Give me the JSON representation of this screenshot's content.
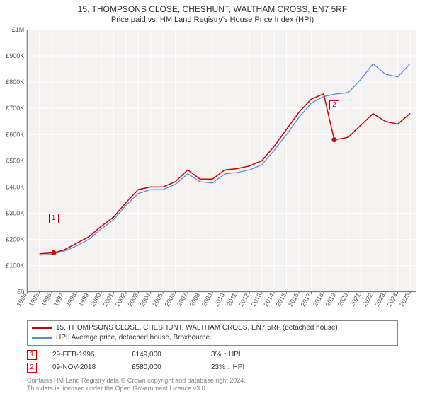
{
  "title": "15, THOMPSONS CLOSE, CHESHUNT, WALTHAM CROSS, EN7 5RF",
  "subtitle": "Price paid vs. HM Land Registry's House Price Index (HPI)",
  "chart": {
    "type": "line",
    "background_color": "#ffffff",
    "plot_background_color": "#f5f2f2",
    "grid_color": "#ffffff",
    "axis_color": "#666666",
    "tick_font_size": 9,
    "x": {
      "min": 1994,
      "max": 2025.5,
      "ticks": [
        1994,
        1995,
        1996,
        1997,
        1998,
        1999,
        2000,
        2001,
        2002,
        2003,
        2004,
        2005,
        2006,
        2007,
        2008,
        2009,
        2010,
        2011,
        2012,
        2013,
        2014,
        2015,
        2016,
        2017,
        2018,
        2019,
        2020,
        2021,
        2022,
        2023,
        2024,
        2025
      ],
      "tick_labels": [
        "1994",
        "1995",
        "1996",
        "1997",
        "1998",
        "1999",
        "2000",
        "2001",
        "2002",
        "2003",
        "2004",
        "2005",
        "2006",
        "2007",
        "2008",
        "2009",
        "2010",
        "2011",
        "2012",
        "2013",
        "2014",
        "2015",
        "2016",
        "2017",
        "2018",
        "2019",
        "2020",
        "2021",
        "2022",
        "2023",
        "2024",
        "2025"
      ]
    },
    "y": {
      "min": 0,
      "max": 1000000,
      "ticks": [
        0,
        100000,
        200000,
        300000,
        400000,
        500000,
        600000,
        700000,
        800000,
        900000,
        1000000
      ],
      "tick_labels": [
        "£0",
        "£100K",
        "£200K",
        "£300K",
        "£400K",
        "£500K",
        "£600K",
        "£700K",
        "£800K",
        "£900K",
        "£1M"
      ]
    },
    "series": [
      {
        "name": "15, THOMPSONS CLOSE, CHESHUNT, WALTHAM CROSS, EN7 5RF (detached house)",
        "color": "#cc0000",
        "line_width": 1.5,
        "points": [
          [
            1995,
            145000
          ],
          [
            1996.16,
            149000
          ],
          [
            1997,
            160000
          ],
          [
            1998,
            185000
          ],
          [
            1999,
            210000
          ],
          [
            2000,
            250000
          ],
          [
            2001,
            285000
          ],
          [
            2002,
            340000
          ],
          [
            2003,
            390000
          ],
          [
            2004,
            400000
          ],
          [
            2005,
            400000
          ],
          [
            2006,
            420000
          ],
          [
            2007,
            465000
          ],
          [
            2008,
            430000
          ],
          [
            2009,
            430000
          ],
          [
            2010,
            465000
          ],
          [
            2011,
            470000
          ],
          [
            2012,
            480000
          ],
          [
            2013,
            500000
          ],
          [
            2014,
            555000
          ],
          [
            2015,
            620000
          ],
          [
            2016,
            685000
          ],
          [
            2017,
            735000
          ],
          [
            2018,
            755000
          ],
          [
            2018.86,
            580000
          ],
          [
            2019.5,
            585000
          ],
          [
            2020,
            590000
          ],
          [
            2021,
            635000
          ],
          [
            2022,
            680000
          ],
          [
            2023,
            650000
          ],
          [
            2024,
            640000
          ],
          [
            2025,
            680000
          ]
        ]
      },
      {
        "name": "HPI: Average price, detached house, Broxbourne",
        "color": "#5b8bd4",
        "line_width": 1.3,
        "points": [
          [
            1995,
            140000
          ],
          [
            1996,
            143000
          ],
          [
            1997,
            155000
          ],
          [
            1998,
            175000
          ],
          [
            1999,
            200000
          ],
          [
            2000,
            240000
          ],
          [
            2001,
            275000
          ],
          [
            2002,
            330000
          ],
          [
            2003,
            375000
          ],
          [
            2004,
            390000
          ],
          [
            2005,
            390000
          ],
          [
            2006,
            410000
          ],
          [
            2007,
            450000
          ],
          [
            2008,
            420000
          ],
          [
            2009,
            415000
          ],
          [
            2010,
            450000
          ],
          [
            2011,
            455000
          ],
          [
            2012,
            465000
          ],
          [
            2013,
            485000
          ],
          [
            2014,
            540000
          ],
          [
            2015,
            600000
          ],
          [
            2016,
            665000
          ],
          [
            2017,
            720000
          ],
          [
            2018,
            745000
          ],
          [
            2019,
            755000
          ],
          [
            2020,
            760000
          ],
          [
            2021,
            810000
          ],
          [
            2022,
            870000
          ],
          [
            2023,
            830000
          ],
          [
            2024,
            820000
          ],
          [
            2025,
            870000
          ]
        ]
      }
    ],
    "markers": [
      {
        "id": "1",
        "x": 1996.16,
        "y": 149000,
        "badge_offset_y": -56
      },
      {
        "id": "2",
        "x": 2018.86,
        "y": 580000,
        "badge_offset_y": -56
      }
    ]
  },
  "legend": {
    "items": [
      {
        "color": "#cc0000",
        "label": "15, THOMPSONS CLOSE, CHESHUNT, WALTHAM CROSS, EN7 5RF (detached house)"
      },
      {
        "color": "#5b8bd4",
        "label": "HPI: Average price, detached house, Broxbourne"
      }
    ]
  },
  "annotations": [
    {
      "id": "1",
      "date": "29-FEB-1996",
      "price": "£149,000",
      "delta": "3% ↑ HPI"
    },
    {
      "id": "2",
      "date": "09-NOV-2018",
      "price": "£580,000",
      "delta": "23% ↓ HPI"
    }
  ],
  "footer_line1": "Contains HM Land Registry data © Crown copyright and database right 2024.",
  "footer_line2": "This data is licensed under the Open Government Licence v3.0."
}
